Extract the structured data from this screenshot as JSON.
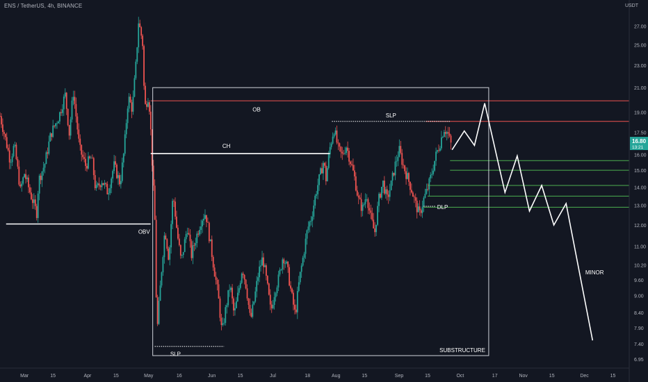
{
  "header": {
    "title": "ENS / TetherUS, 4h, BINANCE"
  },
  "price_axis": {
    "currency": "USDT"
  },
  "chart_data": {
    "type": "candlestick",
    "symbol": "ENS / TetherUS",
    "interval": "4h",
    "exchange": "BINANCE",
    "y_scale": "log",
    "y_ticks": [
      6.95,
      7.4,
      7.9,
      8.4,
      9.0,
      9.6,
      10.2,
      11.0,
      12.0,
      13.0,
      14.0,
      15.0,
      16.0,
      17.5,
      19.0,
      21.0,
      23.0,
      25.0,
      27.0
    ],
    "y_tick_labels": [
      "6.95",
      "7.40",
      "7.90",
      "8.40",
      "9.00",
      "9.60",
      "10.20",
      "11.00",
      "12.00",
      "13.00",
      "14.00",
      "15.00",
      "16.00",
      "17.50",
      "19.00",
      "21.00",
      "23.00",
      "25.00",
      "27.00"
    ],
    "ylim": [
      6.7,
      29.5
    ],
    "x_ticks": [
      "Mar",
      "15",
      "Apr",
      "15",
      "May",
      "16",
      "Jun",
      "15",
      "Jul",
      "18",
      "Aug",
      "15",
      "Sep",
      "15",
      "Oct",
      "17",
      "Nov",
      "15",
      "Dec",
      "15"
    ],
    "x_tick_days": [
      0,
      14,
      31,
      45,
      61,
      76,
      92,
      106,
      122,
      139,
      153,
      167,
      184,
      198,
      214,
      231,
      245,
      259,
      275,
      289
    ],
    "xlim_days": [
      -12,
      297
    ],
    "last_price": "16.80",
    "last_price_value": 16.8,
    "countdown": "13:21",
    "price_path": [
      [
        -12,
        18.7
      ],
      [
        -7,
        15.6
      ],
      [
        -5,
        16.6
      ],
      [
        -2,
        13.8
      ],
      [
        0,
        14.8
      ],
      [
        3,
        13.6
      ],
      [
        6,
        12.6
      ],
      [
        7,
        14.4
      ],
      [
        10,
        15.4
      ],
      [
        13,
        17.4
      ],
      [
        17,
        18.7
      ],
      [
        20,
        20.4
      ],
      [
        22,
        17.4
      ],
      [
        24,
        20.6
      ],
      [
        27,
        16.4
      ],
      [
        30,
        15.3
      ],
      [
        33,
        15.8
      ],
      [
        35,
        13.8
      ],
      [
        38,
        14.4
      ],
      [
        41,
        13.7
      ],
      [
        44,
        15.3
      ],
      [
        47,
        14.2
      ],
      [
        49,
        16.3
      ],
      [
        51,
        20.2
      ],
      [
        53,
        19.2
      ],
      [
        55,
        23.6
      ],
      [
        56,
        27.5
      ],
      [
        58,
        25.3
      ],
      [
        59,
        19.3
      ],
      [
        61,
        20.4
      ],
      [
        62,
        17.7
      ],
      [
        63,
        14.6
      ],
      [
        64,
        12.4
      ],
      [
        65,
        7.6
      ],
      [
        67,
        9.6
      ],
      [
        69,
        11.8
      ],
      [
        71,
        10.4
      ],
      [
        73,
        13.6
      ],
      [
        75,
        11.6
      ],
      [
        77,
        10.3
      ],
      [
        80,
        11.9
      ],
      [
        82,
        10.6
      ],
      [
        84,
        11.3
      ],
      [
        87,
        12.3
      ],
      [
        89,
        12.6
      ],
      [
        91,
        11.3
      ],
      [
        93,
        10.1
      ],
      [
        95,
        9.1
      ],
      [
        97,
        7.7
      ],
      [
        99,
        8.6
      ],
      [
        101,
        9.4
      ],
      [
        103,
        8.3
      ],
      [
        105,
        9.1
      ],
      [
        107,
        10.1
      ],
      [
        109,
        9.3
      ],
      [
        111,
        8.1
      ],
      [
        113,
        8.9
      ],
      [
        115,
        9.9
      ],
      [
        117,
        10.5
      ],
      [
        119,
        9.5
      ],
      [
        121,
        8.4
      ],
      [
        123,
        9.2
      ],
      [
        125,
        9.7
      ],
      [
        127,
        10.6
      ],
      [
        129,
        10.1
      ],
      [
        131,
        9.1
      ],
      [
        133,
        8.3
      ],
      [
        135,
        9.6
      ],
      [
        137,
        10.6
      ],
      [
        139,
        11.8
      ],
      [
        141,
        12.4
      ],
      [
        143,
        13.6
      ],
      [
        145,
        14.6
      ],
      [
        147,
        15.6
      ],
      [
        148,
        14.4
      ],
      [
        150,
        16.4
      ],
      [
        152,
        17.8
      ],
      [
        154,
        16.4
      ],
      [
        156,
        15.9
      ],
      [
        158,
        16.6
      ],
      [
        160,
        15.6
      ],
      [
        162,
        14.6
      ],
      [
        164,
        13.3
      ],
      [
        166,
        12.8
      ],
      [
        168,
        13.6
      ],
      [
        170,
        12.4
      ],
      [
        172,
        11.6
      ],
      [
        174,
        13.3
      ],
      [
        176,
        14.3
      ],
      [
        178,
        13.3
      ],
      [
        180,
        14.1
      ],
      [
        182,
        15.3
      ],
      [
        184,
        16.3
      ],
      [
        186,
        15.3
      ],
      [
        188,
        14.6
      ],
      [
        190,
        13.9
      ],
      [
        192,
        13.1
      ],
      [
        194,
        12.5
      ],
      [
        196,
        13.3
      ],
      [
        198,
        13.9
      ],
      [
        200,
        14.8
      ],
      [
        202,
        15.9
      ],
      [
        204,
        16.7
      ],
      [
        206,
        17.8
      ],
      [
        208,
        17.4
      ],
      [
        210,
        16.4
      ]
    ],
    "projection": [
      [
        210,
        16.3
      ],
      [
        216,
        17.6
      ],
      [
        221,
        16.6
      ],
      [
        226,
        19.7
      ],
      [
        236,
        13.7
      ],
      [
        242,
        15.9
      ],
      [
        248,
        12.7
      ],
      [
        254,
        14.1
      ],
      [
        260,
        12.0
      ],
      [
        266,
        13.1
      ],
      [
        279,
        7.5
      ]
    ],
    "horizontal_lines": [
      {
        "kind": "resistance",
        "y": 19.9,
        "from_day": 62,
        "color": "#ef5350"
      },
      {
        "kind": "resistance",
        "y": 18.3,
        "from_day": 197,
        "color": "#ef5350"
      },
      {
        "kind": "level",
        "y": 15.6,
        "from_day": 209,
        "color": "#4caf50"
      },
      {
        "kind": "level",
        "y": 15.0,
        "from_day": 209,
        "color": "#4caf50"
      },
      {
        "kind": "level",
        "y": 14.1,
        "from_day": 198,
        "color": "#4caf50"
      },
      {
        "kind": "level",
        "y": 13.5,
        "from_day": 198,
        "color": "#4caf50"
      },
      {
        "kind": "level",
        "y": 12.9,
        "from_day": 196,
        "color": "#4caf50"
      }
    ],
    "marked_levels": [
      {
        "label": "CH",
        "y": 16.05,
        "from_day": 62,
        "to_day": 150
      },
      {
        "label": "OBV",
        "y": 12.05,
        "from_day": -9,
        "to_day": 62
      }
    ],
    "liquidity_lines": [
      {
        "label": "SLP",
        "y": 18.3,
        "from_day": 151,
        "to_day": 209,
        "label_pos": "above"
      },
      {
        "label": "SLP",
        "y": 7.32,
        "from_day": 64,
        "to_day": 98,
        "label_pos": "below"
      },
      {
        "label": "DLP",
        "y": 12.95,
        "from_day": 196,
        "to_day": 202,
        "label_pos": "right"
      }
    ],
    "zones": [
      {
        "label": "SUBSTRUCTURE",
        "from_day": 63,
        "to_day": 228,
        "y_top": 21.0,
        "y_bottom": 7.05
      }
    ],
    "annotations": [
      {
        "text": "OB",
        "day": 114,
        "y": 19.05
      },
      {
        "text": "MINOR",
        "day": 280,
        "y": 9.82
      }
    ],
    "colors": {
      "up": "#26a69a",
      "down": "#ef5350",
      "background": "#131722",
      "text": "#b2b5be",
      "drawing": "#ffffff"
    },
    "grid": false,
    "legend": "none"
  }
}
